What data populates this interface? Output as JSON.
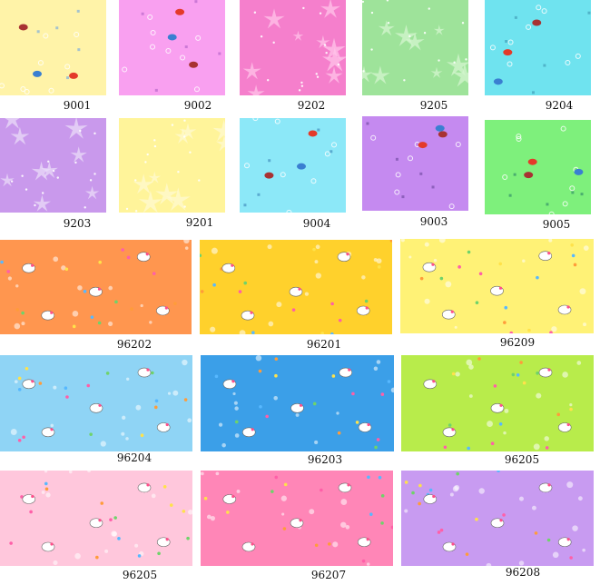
{
  "swatches": [
    {
      "code": "9001",
      "color": "#fff3a8",
      "pattern": "sea",
      "motif_color": "#8fb7d6"
    },
    {
      "code": "9002",
      "color": "#f9a0f0",
      "pattern": "sea",
      "motif_color": "#c06fd0"
    },
    {
      "code": "9202",
      "color": "#f57fcc",
      "pattern": "starfish",
      "motif_color": "#ffc4ea"
    },
    {
      "code": "9205",
      "color": "#9ee39a",
      "pattern": "starfish",
      "motif_color": "#d4f5cf"
    },
    {
      "code": "9204",
      "color": "#6fe3ef",
      "pattern": "sea",
      "motif_color": "#48a8bf"
    },
    {
      "code": "9203",
      "color": "#c999ec",
      "pattern": "starfish",
      "motif_color": "#eadcf8"
    },
    {
      "code": "9201",
      "color": "#fff49a",
      "pattern": "starfish",
      "motif_color": "#fffad0"
    },
    {
      "code": "9004",
      "color": "#8ce8f8",
      "pattern": "sea",
      "motif_color": "#4d9bc7"
    },
    {
      "code": "9003",
      "color": "#c58af0",
      "pattern": "sea",
      "motif_color": "#8055b0"
    },
    {
      "code": "9005",
      "color": "#7ef07c",
      "pattern": "sea",
      "motif_color": "#3d9d6a"
    },
    {
      "code": "96202",
      "color": "#ff964f",
      "pattern": "kitty",
      "motif_color": "#ffffff"
    },
    {
      "code": "96201",
      "color": "#ffd12c",
      "pattern": "kitty",
      "motif_color": "#ffffff"
    },
    {
      "code": "96209",
      "color": "#fff276",
      "pattern": "kitty",
      "motif_color": "#ffffff"
    },
    {
      "code": "96204",
      "color": "#8fd4f5",
      "pattern": "kitty",
      "motif_color": "#ffffff"
    },
    {
      "code": "96203",
      "color": "#3b9fe8",
      "pattern": "kitty",
      "motif_color": "#ffffff"
    },
    {
      "code": "96205",
      "color": "#b8ec4b",
      "pattern": "kitty",
      "motif_color": "#ffffff"
    },
    {
      "code": "96205",
      "color": "#ffc7dc",
      "pattern": "kitty",
      "motif_color": "#ffffff"
    },
    {
      "code": "96207",
      "color": "#ff86b7",
      "pattern": "kitty",
      "motif_color": "#ffffff"
    },
    {
      "code": "96208",
      "color": "#c89bf1",
      "pattern": "kitty",
      "motif_color": "#ffffff"
    }
  ]
}
